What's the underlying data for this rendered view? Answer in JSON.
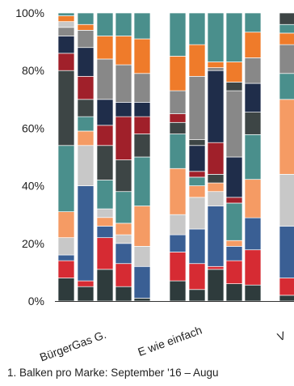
{
  "chart_data": {
    "type": "bar",
    "stacked": true,
    "y_axis": {
      "min": 0,
      "max": 100,
      "ticks": [
        "0%",
        "20%",
        "40%",
        "60%",
        "80%",
        "100%"
      ]
    },
    "categories": [
      "BürgerGas G.",
      "E wie einfach",
      "V"
    ],
    "footnote": "1. Balken pro Marke: September '16 – Augu",
    "segment_colors": [
      "#2e3b3c",
      "#d62b33",
      "#3a5f94",
      "#f59b64",
      "#c8c8c8",
      "#4a8f8c",
      "#3d4545",
      "#a0202a",
      "#1f2d4a",
      "#888888",
      "#ef7b2a"
    ],
    "groups": [
      {
        "category": "BürgerGas G.",
        "bars": [
          {
            "segments": [
              {
                "c": "#2e3b3c",
                "v": 8
              },
              {
                "c": "#d62b33",
                "v": 6
              },
              {
                "c": "#3a5f94",
                "v": 2
              },
              {
                "c": "#c8c8c8",
                "v": 6
              },
              {
                "c": "#f59b64",
                "v": 9
              },
              {
                "c": "#4a8f8c",
                "v": 23
              },
              {
                "c": "#3d4545",
                "v": 26
              },
              {
                "c": "#a0202a",
                "v": 6
              },
              {
                "c": "#1f2d4a",
                "v": 6
              },
              {
                "c": "#888888",
                "v": 3
              },
              {
                "c": "#c8c8c8",
                "v": 2
              },
              {
                "c": "#ef7b2a",
                "v": 2
              },
              {
                "c": "#4a8f8c",
                "v": 1
              }
            ]
          },
          {
            "segments": [
              {
                "c": "#2e3b3c",
                "v": 5
              },
              {
                "c": "#d62b33",
                "v": 2
              },
              {
                "c": "#3a5f94",
                "v": 33
              },
              {
                "c": "#c8c8c8",
                "v": 14
              },
              {
                "c": "#f59b64",
                "v": 5
              },
              {
                "c": "#4a8f8c",
                "v": 5
              },
              {
                "c": "#3d4545",
                "v": 6
              },
              {
                "c": "#a0202a",
                "v": 8
              },
              {
                "c": "#1f2d4a",
                "v": 10
              },
              {
                "c": "#888888",
                "v": 6
              },
              {
                "c": "#ef7b2a",
                "v": 2
              },
              {
                "c": "#4a8f8c",
                "v": 4
              }
            ]
          },
          {
            "segments": [
              {
                "c": "#2e3b3c",
                "v": 11
              },
              {
                "c": "#d62b33",
                "v": 11
              },
              {
                "c": "#3a5f94",
                "v": 4
              },
              {
                "c": "#f59b64",
                "v": 3
              },
              {
                "c": "#c8c8c8",
                "v": 3
              },
              {
                "c": "#4a8f8c",
                "v": 10
              },
              {
                "c": "#3d4545",
                "v": 12
              },
              {
                "c": "#a0202a",
                "v": 7
              },
              {
                "c": "#1f2d4a",
                "v": 9
              },
              {
                "c": "#888888",
                "v": 14
              },
              {
                "c": "#ef7b2a",
                "v": 8
              },
              {
                "c": "#4a8f8c",
                "v": 8
              }
            ]
          },
          {
            "segments": [
              {
                "c": "#2e3b3c",
                "v": 5
              },
              {
                "c": "#d62b33",
                "v": 8
              },
              {
                "c": "#3a5f94",
                "v": 7
              },
              {
                "c": "#c8c8c8",
                "v": 3
              },
              {
                "c": "#f59b64",
                "v": 4
              },
              {
                "c": "#4a8f8c",
                "v": 11
              },
              {
                "c": "#3d4545",
                "v": 11
              },
              {
                "c": "#a0202a",
                "v": 15
              },
              {
                "c": "#1f2d4a",
                "v": 5
              },
              {
                "c": "#888888",
                "v": 13
              },
              {
                "c": "#ef7b2a",
                "v": 10
              },
              {
                "c": "#4a8f8c",
                "v": 8
              }
            ]
          },
          {
            "segments": [
              {
                "c": "#2e3b3c",
                "v": 1
              },
              {
                "c": "#3a5f94",
                "v": 11
              },
              {
                "c": "#c8c8c8",
                "v": 7
              },
              {
                "c": "#f59b64",
                "v": 14
              },
              {
                "c": "#4a8f8c",
                "v": 17
              },
              {
                "c": "#3d4545",
                "v": 8
              },
              {
                "c": "#a0202a",
                "v": 6
              },
              {
                "c": "#1f2d4a",
                "v": 5
              },
              {
                "c": "#888888",
                "v": 10
              },
              {
                "c": "#ef7b2a",
                "v": 12
              },
              {
                "c": "#4a8f8c",
                "v": 9
              }
            ]
          }
        ]
      },
      {
        "category": "E wie einfach",
        "bars": [
          {
            "segments": [
              {
                "c": "#2e3b3c",
                "v": 7
              },
              {
                "c": "#d62b33",
                "v": 10
              },
              {
                "c": "#3a5f94",
                "v": 6
              },
              {
                "c": "#c8c8c8",
                "v": 7
              },
              {
                "c": "#f59b64",
                "v": 16
              },
              {
                "c": "#4a8f8c",
                "v": 12
              },
              {
                "c": "#3d4545",
                "v": 4
              },
              {
                "c": "#a0202a",
                "v": 3
              },
              {
                "c": "#888888",
                "v": 8
              },
              {
                "c": "#ef7b2a",
                "v": 12
              },
              {
                "c": "#4a8f8c",
                "v": 15
              }
            ]
          },
          {
            "segments": [
              {
                "c": "#2e3b3c",
                "v": 4
              },
              {
                "c": "#d62b33",
                "v": 9
              },
              {
                "c": "#3a5f94",
                "v": 12
              },
              {
                "c": "#c8c8c8",
                "v": 11
              },
              {
                "c": "#f59b64",
                "v": 4
              },
              {
                "c": "#4a8f8c",
                "v": 3
              },
              {
                "c": "#a0202a",
                "v": 2
              },
              {
                "c": "#1f2d4a",
                "v": 9
              },
              {
                "c": "#3d4545",
                "v": 2
              },
              {
                "c": "#888888",
                "v": 22
              },
              {
                "c": "#ef7b2a",
                "v": 11
              },
              {
                "c": "#4a8f8c",
                "v": 11
              }
            ]
          },
          {
            "segments": [
              {
                "c": "#2e3b3c",
                "v": 11
              },
              {
                "c": "#d62b33",
                "v": 1
              },
              {
                "c": "#3a5f94",
                "v": 21
              },
              {
                "c": "#c8c8c8",
                "v": 5
              },
              {
                "c": "#f59b64",
                "v": 3
              },
              {
                "c": "#3d4545",
                "v": 3
              },
              {
                "c": "#a0202a",
                "v": 11
              },
              {
                "c": "#1f2d4a",
                "v": 25
              },
              {
                "c": "#888888",
                "v": 1
              },
              {
                "c": "#ef7b2a",
                "v": 2
              },
              {
                "c": "#4a8f8c",
                "v": 17
              }
            ]
          },
          {
            "segments": [
              {
                "c": "#2e3b3c",
                "v": 6
              },
              {
                "c": "#d62b33",
                "v": 8
              },
              {
                "c": "#3a5f94",
                "v": 5
              },
              {
                "c": "#f59b64",
                "v": 2
              },
              {
                "c": "#4a8f8c",
                "v": 13
              },
              {
                "c": "#a0202a",
                "v": 2
              },
              {
                "c": "#1f2d4a",
                "v": 14
              },
              {
                "c": "#888888",
                "v": 23
              },
              {
                "c": "#3d4545",
                "v": 3
              },
              {
                "c": "#ef7b2a",
                "v": 7
              },
              {
                "c": "#4a8f8c",
                "v": 17
              }
            ]
          },
          {
            "segments": [
              {
                "c": "#2e3b3c",
                "v": 5
              },
              {
                "c": "#d62b33",
                "v": 11
              },
              {
                "c": "#3a5f94",
                "v": 10
              },
              {
                "c": "#f59b64",
                "v": 12
              },
              {
                "c": "#4a8f8c",
                "v": 14
              },
              {
                "c": "#3d4545",
                "v": 7
              },
              {
                "c": "#1f2d4a",
                "v": 9
              },
              {
                "c": "#888888",
                "v": 8
              },
              {
                "c": "#ef7b2a",
                "v": 8
              },
              {
                "c": "#4a8f8c",
                "v": 6
              }
            ]
          }
        ]
      },
      {
        "category": "V",
        "bars": [
          {
            "segments": [
              {
                "c": "#2e3b3c",
                "v": 2
              },
              {
                "c": "#d62b33",
                "v": 6
              },
              {
                "c": "#3a5f94",
                "v": 18
              },
              {
                "c": "#c8c8c8",
                "v": 18
              },
              {
                "c": "#f59b64",
                "v": 26
              },
              {
                "c": "#4a8f8c",
                "v": 9
              },
              {
                "c": "#888888",
                "v": 10
              },
              {
                "c": "#ef7b2a",
                "v": 4
              },
              {
                "c": "#4a8f8c",
                "v": 3
              },
              {
                "c": "#3d4545",
                "v": 4
              }
            ]
          }
        ]
      }
    ]
  }
}
